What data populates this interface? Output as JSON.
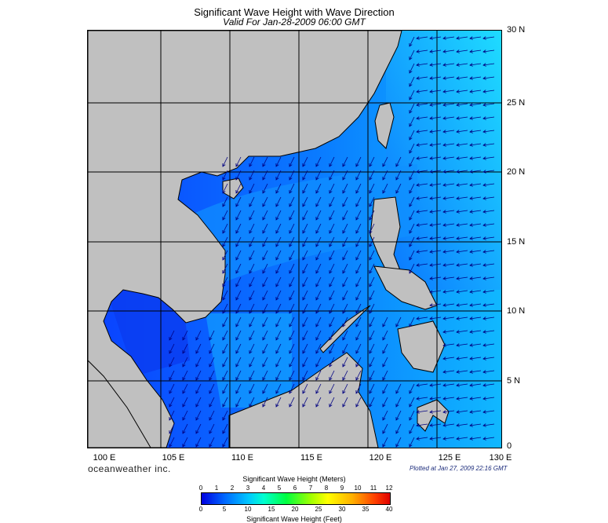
{
  "title": "Significant Wave Height with Wave Direction",
  "subtitle": "Valid For Jan-28-2009 06:00 GMT",
  "lat_labels": [
    "30 N",
    "25 N",
    "20 N",
    "15 N",
    "10 N",
    "5 N",
    "0"
  ],
  "lon_labels": [
    "100 E",
    "105 E",
    "110 E",
    "115 E",
    "120 E",
    "125 E",
    "130 E"
  ],
  "brand": "oceanweather inc.",
  "plotted": "Plotted at Jan 27, 2009 22:16 GMT",
  "colorbar": {
    "title_top": "Significant Wave Height (Meters)",
    "title_bottom": "Significant Wave Height (Feet)",
    "meters_ticks": [
      "0",
      "1",
      "2",
      "3",
      "4",
      "5",
      "6",
      "7",
      "8",
      "9",
      "10",
      "11",
      "12"
    ],
    "feet_ticks": [
      "0",
      "5",
      "10",
      "15",
      "20",
      "25",
      "30",
      "35",
      "40"
    ]
  },
  "colors": {
    "land": "#c0c0c0",
    "ocean_low": "#0040ff",
    "ocean_mid": "#0090ff",
    "ocean_high": "#00d0ff"
  }
}
